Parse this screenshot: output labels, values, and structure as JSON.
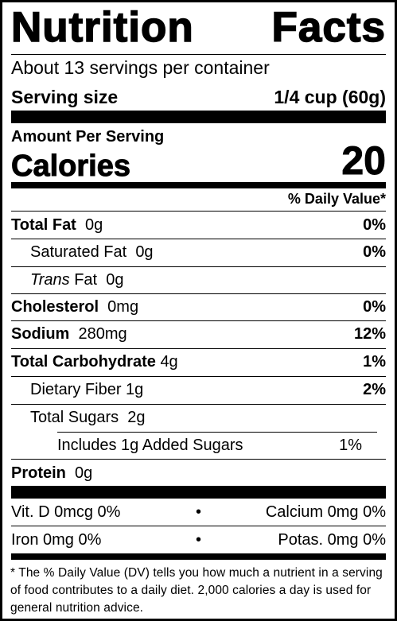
{
  "title_left": "Nutrition",
  "title_right": "Facts",
  "servings_per_container": "About 13 servings per container",
  "serving_size_label": "Serving size",
  "serving_size_value": "1/4 cup (60g)",
  "amount_per_serving": "Amount Per Serving",
  "calories_label": "Calories",
  "calories_value": "20",
  "daily_value_header": "% Daily Value*",
  "nutrients": {
    "total_fat": {
      "label": "Total Fat",
      "amount": "0g",
      "dv": "0%"
    },
    "saturated_fat": {
      "label": "Saturated Fat",
      "amount": "0g",
      "dv": "0%"
    },
    "trans_fat": {
      "label_italic": "Trans",
      "label": "Fat",
      "amount": "0g"
    },
    "cholesterol": {
      "label": "Cholesterol",
      "amount": "0mg",
      "dv": "0%"
    },
    "sodium": {
      "label": "Sodium",
      "amount": "280mg",
      "dv": "12%"
    },
    "total_carb": {
      "label": "Total Carbohydrate",
      "amount": "4g",
      "dv": "1%"
    },
    "dietary_fiber": {
      "label": "Dietary Fiber",
      "amount": "1g",
      "dv": "2%"
    },
    "total_sugars": {
      "label": "Total Sugars",
      "amount": "2g"
    },
    "added_sugars": {
      "label": "Includes 1g Added Sugars",
      "dv": "1%"
    },
    "protein": {
      "label": "Protein",
      "amount": "0g"
    }
  },
  "vitamins": {
    "vit_d": "Vit. D 0mcg 0%",
    "calcium": "Calcium 0mg 0%",
    "iron": "Iron 0mg 0%",
    "potassium": "Potas. 0mg 0%",
    "bullet": "•"
  },
  "footnote": "* The % Daily Value (DV) tells you how much a nutrient in a serving of food contributes to a daily diet. 2,000 calories a day is used for general nutrition advice."
}
